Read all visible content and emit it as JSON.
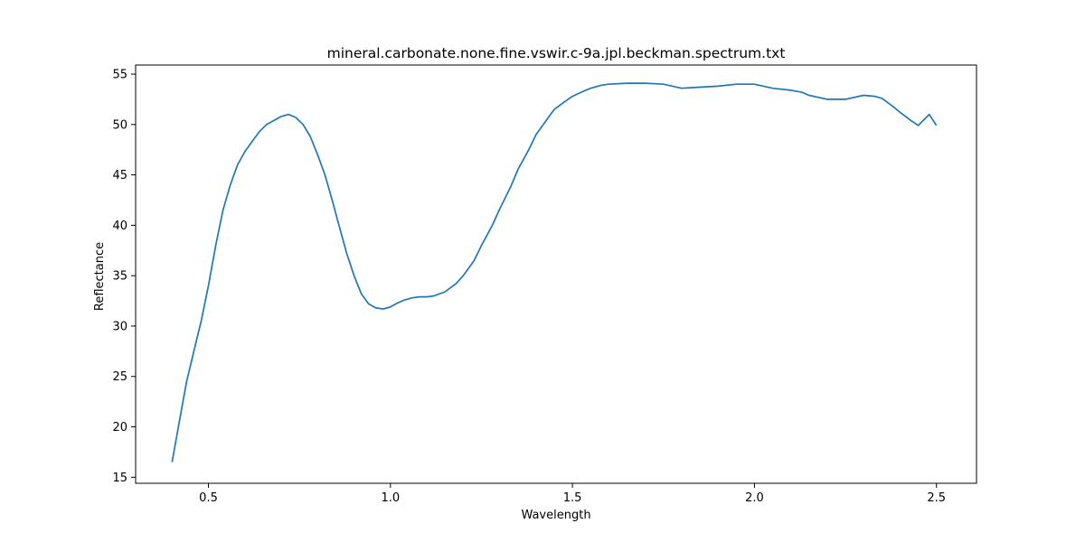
{
  "chart_data": {
    "type": "line",
    "title": "mineral.carbonate.none.fine.vswir.c-9a.jpl.beckman.spectrum.txt",
    "xlabel": "Wavelength",
    "ylabel": "Reflectance",
    "xlim": [
      0.3,
      2.61
    ],
    "ylim": [
      14.4,
      55.9
    ],
    "xticks": [
      "0.5",
      "1.0",
      "1.5",
      "2.0",
      "2.5"
    ],
    "xtick_values": [
      0.5,
      1.0,
      1.5,
      2.0,
      2.5
    ],
    "yticks": [
      "15",
      "20",
      "25",
      "30",
      "35",
      "40",
      "45",
      "50",
      "55"
    ],
    "ytick_values": [
      15,
      20,
      25,
      30,
      35,
      40,
      45,
      50,
      55
    ],
    "grid": false,
    "line_color": "#1f77b4",
    "series": [
      {
        "x": [
          0.4,
          0.42,
          0.44,
          0.46,
          0.48,
          0.5,
          0.52,
          0.54,
          0.56,
          0.58,
          0.6,
          0.62,
          0.64,
          0.66,
          0.68,
          0.7,
          0.72,
          0.74,
          0.76,
          0.78,
          0.8,
          0.82,
          0.84,
          0.86,
          0.88,
          0.9,
          0.92,
          0.94,
          0.96,
          0.98,
          1.0,
          1.02,
          1.04,
          1.06,
          1.08,
          1.1,
          1.12,
          1.15,
          1.18,
          1.2,
          1.23,
          1.25,
          1.28,
          1.3,
          1.33,
          1.35,
          1.38,
          1.4,
          1.43,
          1.45,
          1.48,
          1.5,
          1.53,
          1.55,
          1.58,
          1.6,
          1.65,
          1.7,
          1.75,
          1.8,
          1.85,
          1.9,
          1.95,
          2.0,
          2.05,
          2.1,
          2.13,
          2.15,
          2.2,
          2.25,
          2.3,
          2.33,
          2.35,
          2.38,
          2.4,
          2.43,
          2.45,
          2.48,
          2.5
        ],
        "y": [
          16.5,
          20.5,
          24.5,
          27.5,
          30.5,
          34.0,
          38.0,
          41.5,
          44.0,
          46.0,
          47.3,
          48.3,
          49.3,
          50.0,
          50.4,
          50.8,
          51.0,
          50.7,
          50.0,
          48.8,
          47.0,
          45.0,
          42.5,
          39.8,
          37.2,
          35.0,
          33.2,
          32.2,
          31.8,
          31.7,
          31.9,
          32.3,
          32.6,
          32.8,
          32.9,
          32.9,
          33.0,
          33.4,
          34.2,
          35.0,
          36.5,
          38.0,
          40.0,
          41.6,
          43.8,
          45.5,
          47.5,
          49.0,
          50.5,
          51.5,
          52.3,
          52.8,
          53.3,
          53.6,
          53.9,
          54.0,
          54.1,
          54.1,
          54.0,
          53.6,
          53.7,
          53.8,
          54.0,
          54.0,
          53.6,
          53.4,
          53.2,
          52.9,
          52.5,
          52.5,
          52.9,
          52.8,
          52.6,
          51.8,
          51.2,
          50.4,
          49.9,
          51.0,
          49.9
        ]
      }
    ]
  }
}
